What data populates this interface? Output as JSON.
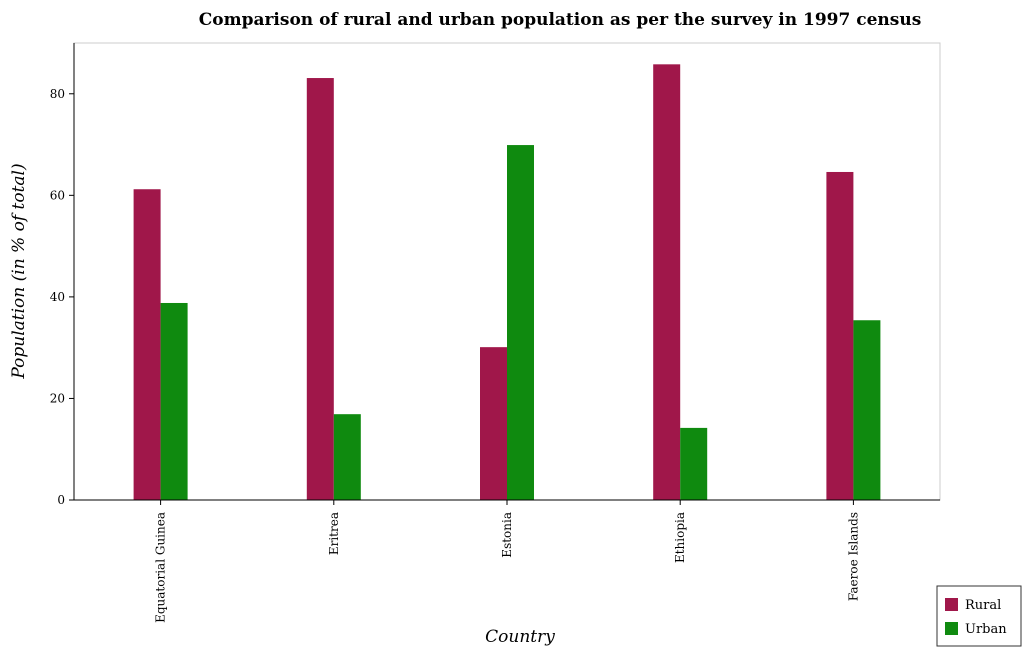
{
  "chart_data": {
    "type": "bar",
    "title": "Comparison of rural and urban population as per the survey in 1997 census",
    "xlabel": "Country",
    "ylabel": "Population (in % of total)",
    "categories": [
      "Equatorial Guinea",
      "Eritrea",
      "Estonia",
      "Ethiopia",
      "Faeroe Islands"
    ],
    "series": [
      {
        "name": "Rural",
        "color": "#a0174a",
        "values": [
          61.2,
          83.1,
          30.1,
          85.8,
          64.6
        ]
      },
      {
        "name": "Urban",
        "color": "#0f8a0f",
        "values": [
          38.8,
          16.9,
          69.9,
          14.2,
          35.4
        ]
      }
    ],
    "ylim": [
      0,
      90
    ],
    "yticks": [
      0,
      20,
      40,
      60,
      80
    ],
    "grid": false,
    "legend_position": "bottom-right"
  }
}
